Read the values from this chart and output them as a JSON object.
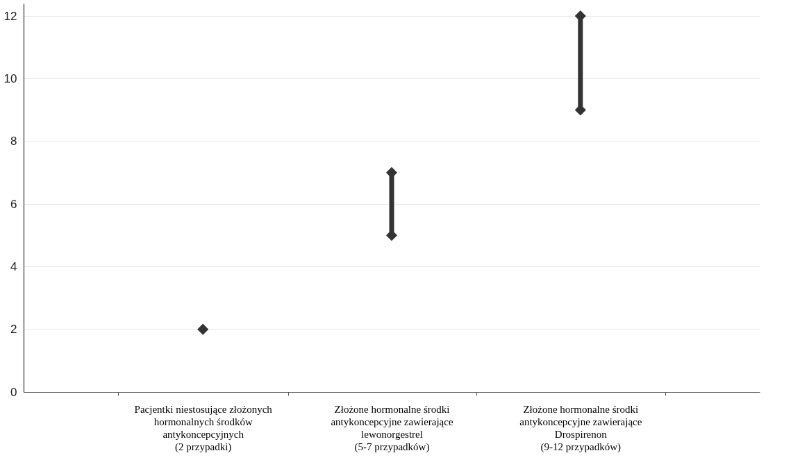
{
  "chart_data": {
    "type": "scatter",
    "categories": [
      "Pacjentki niestosujące złożonych\nhormonalnych środków\nantykoncepcyjnych\n(2 przypadki)",
      "Złożone hormonalne środki\nantykoncepcyjne zawierające\nlewonorgestrel\n(5-7 przypadków)",
      "Złożone hormonalne środki\nantykoncepcyjne zawierające\nDrospirenon\n(9-12 przypadków)"
    ],
    "series": [
      {
        "type": "bar",
        "color": "#333333",
        "base": [
          null,
          5,
          9
        ],
        "values": [
          null,
          2,
          3
        ]
      },
      {
        "color": "#333333",
        "values": [
          2,
          5,
          9
        ]
      },
      {
        "color": "#333333",
        "values": [
          null,
          7,
          12
        ]
      }
    ],
    "marker": "diamond",
    "ylim": [
      0,
      12.4
    ],
    "yticks": [
      0,
      2,
      4,
      6,
      8,
      10,
      12
    ],
    "grid": "y"
  }
}
